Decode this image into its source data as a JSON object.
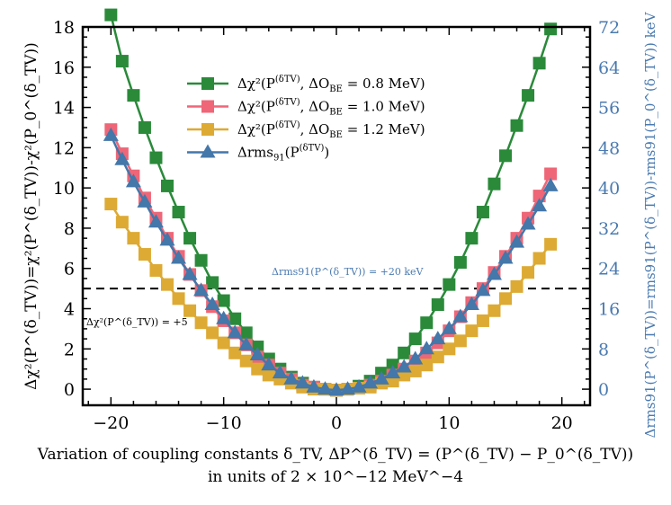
{
  "chart_data": {
    "type": "line",
    "xlabel_line1": "Variation of coupling constants δ_TV, ΔP^(δ_TV) = (P^(δ_TV) − P_0^(δ_TV))",
    "xlabel_line2": "in units of 2 × 10^−12 MeV^−4",
    "ylabel_left": "Δχ²(P^(δ_TV))=χ²(P^(δ_TV))-χ²(P_0^(δ_TV))",
    "ylabel_right": "Δrms91(P^(δ_TV))=rms91(P^(δ_TV))-rms91(P_0^(δ_TV)) keV",
    "xlim": [
      -22.5,
      22.5
    ],
    "ylim_left": [
      -0.8,
      18
    ],
    "ylim_right": [
      -3.2,
      72
    ],
    "xticks": [
      -20,
      -10,
      0,
      10,
      20
    ],
    "yticks_left": [
      0,
      2,
      4,
      6,
      8,
      10,
      12,
      14,
      16,
      18
    ],
    "yticks_right": [
      0,
      8,
      16,
      24,
      32,
      40,
      48,
      56,
      64,
      72
    ],
    "x": [
      -20,
      -19,
      -18,
      -17,
      -16,
      -15,
      -14,
      -13,
      -12,
      -11,
      -10,
      -9,
      -8,
      -7,
      -6,
      -5,
      -4,
      -3,
      -2,
      -1,
      0,
      1,
      2,
      3,
      4,
      5,
      6,
      7,
      8,
      9,
      10,
      11,
      12,
      13,
      14,
      15,
      16,
      17,
      18,
      19
    ],
    "series": [
      {
        "name": "Δχ²(P^(δ_TV), ΔO_BE = 0.8 MeV)",
        "legend_main": "Δχ²(P",
        "legend_sup": "(δTV)",
        "legend_rest": ", ΔO",
        "legend_sub": "BE",
        "legend_end": " = 0.8 MeV)",
        "color": "#2a8a3a",
        "marker": "square",
        "axis": "left",
        "values": [
          18.6,
          16.3,
          14.6,
          13.0,
          11.5,
          10.1,
          8.8,
          7.5,
          6.4,
          5.3,
          4.4,
          3.5,
          2.8,
          2.1,
          1.5,
          1.0,
          0.6,
          0.3,
          0.1,
          0.0,
          -0.05,
          0.0,
          0.15,
          0.4,
          0.8,
          1.2,
          1.8,
          2.5,
          3.3,
          4.2,
          5.2,
          6.3,
          7.5,
          8.8,
          10.2,
          11.6,
          13.1,
          14.6,
          16.2,
          17.9
        ]
      },
      {
        "name": "Δχ²(P^(δ_TV), ΔO_BE = 1.0 MeV)",
        "legend_main": "Δχ²(P",
        "legend_sup": "(δTV)",
        "legend_rest": ", ΔO",
        "legend_sub": "BE",
        "legend_end": " = 1.0 MeV)",
        "color": "#ee6677",
        "marker": "square",
        "axis": "left",
        "values": [
          12.9,
          11.7,
          10.6,
          9.5,
          8.5,
          7.5,
          6.6,
          5.7,
          4.9,
          4.1,
          3.4,
          2.8,
          2.2,
          1.6,
          1.2,
          0.8,
          0.5,
          0.2,
          0.1,
          0.0,
          -0.05,
          0.0,
          0.05,
          0.2,
          0.4,
          0.7,
          1.0,
          1.4,
          1.8,
          2.3,
          2.9,
          3.6,
          4.3,
          5.0,
          5.8,
          6.6,
          7.5,
          8.5,
          9.6,
          10.7
        ]
      },
      {
        "name": "Δχ²(P^(δ_TV), ΔO_BE = 1.2 MeV)",
        "legend_main": "Δχ²(P",
        "legend_sup": "(δTV)",
        "legend_rest": ", ΔO",
        "legend_sub": "BE",
        "legend_end": " = 1.2 MeV)",
        "color": "#ddaa33",
        "marker": "square",
        "axis": "left",
        "values": [
          9.2,
          8.3,
          7.5,
          6.7,
          5.9,
          5.2,
          4.5,
          3.9,
          3.3,
          2.8,
          2.3,
          1.8,
          1.4,
          1.0,
          0.7,
          0.5,
          0.3,
          0.1,
          0.0,
          0.0,
          -0.05,
          0.0,
          0.05,
          0.1,
          0.3,
          0.4,
          0.7,
          0.9,
          1.2,
          1.6,
          2.0,
          2.4,
          2.9,
          3.4,
          3.9,
          4.5,
          5.1,
          5.8,
          6.5,
          7.2
        ]
      },
      {
        "name": "Δrms91(P^(δ_TV))",
        "legend_main": "Δrms",
        "legend_sup": "(δTV)",
        "legend_rest": "",
        "legend_sub": "91",
        "legend_end": "(P",
        "color": "#4477aa",
        "marker": "triangle",
        "axis": "right",
        "values": [
          50.4,
          45.6,
          41.2,
          37.2,
          33.2,
          29.6,
          26.0,
          22.8,
          19.6,
          16.8,
          14.0,
          11.2,
          8.8,
          6.8,
          4.8,
          3.2,
          2.0,
          1.2,
          0.4,
          0.0,
          -0.2,
          0.0,
          0.4,
          1.2,
          2.0,
          3.2,
          4.4,
          6.0,
          8.0,
          10.0,
          12.0,
          14.4,
          16.8,
          19.6,
          22.8,
          26.0,
          29.2,
          32.8,
          36.4,
          40.4
        ]
      }
    ],
    "hline": {
      "y_left": 5,
      "style": "dashed"
    },
    "annotation_right": "Δrms91(P^(δ_TV)) = +20 keV",
    "annotation_left": "Δχ²(P^(δ_TV)) = +5",
    "colors": {
      "axis": "#000000",
      "right_axis": "#4a7ab0"
    }
  }
}
